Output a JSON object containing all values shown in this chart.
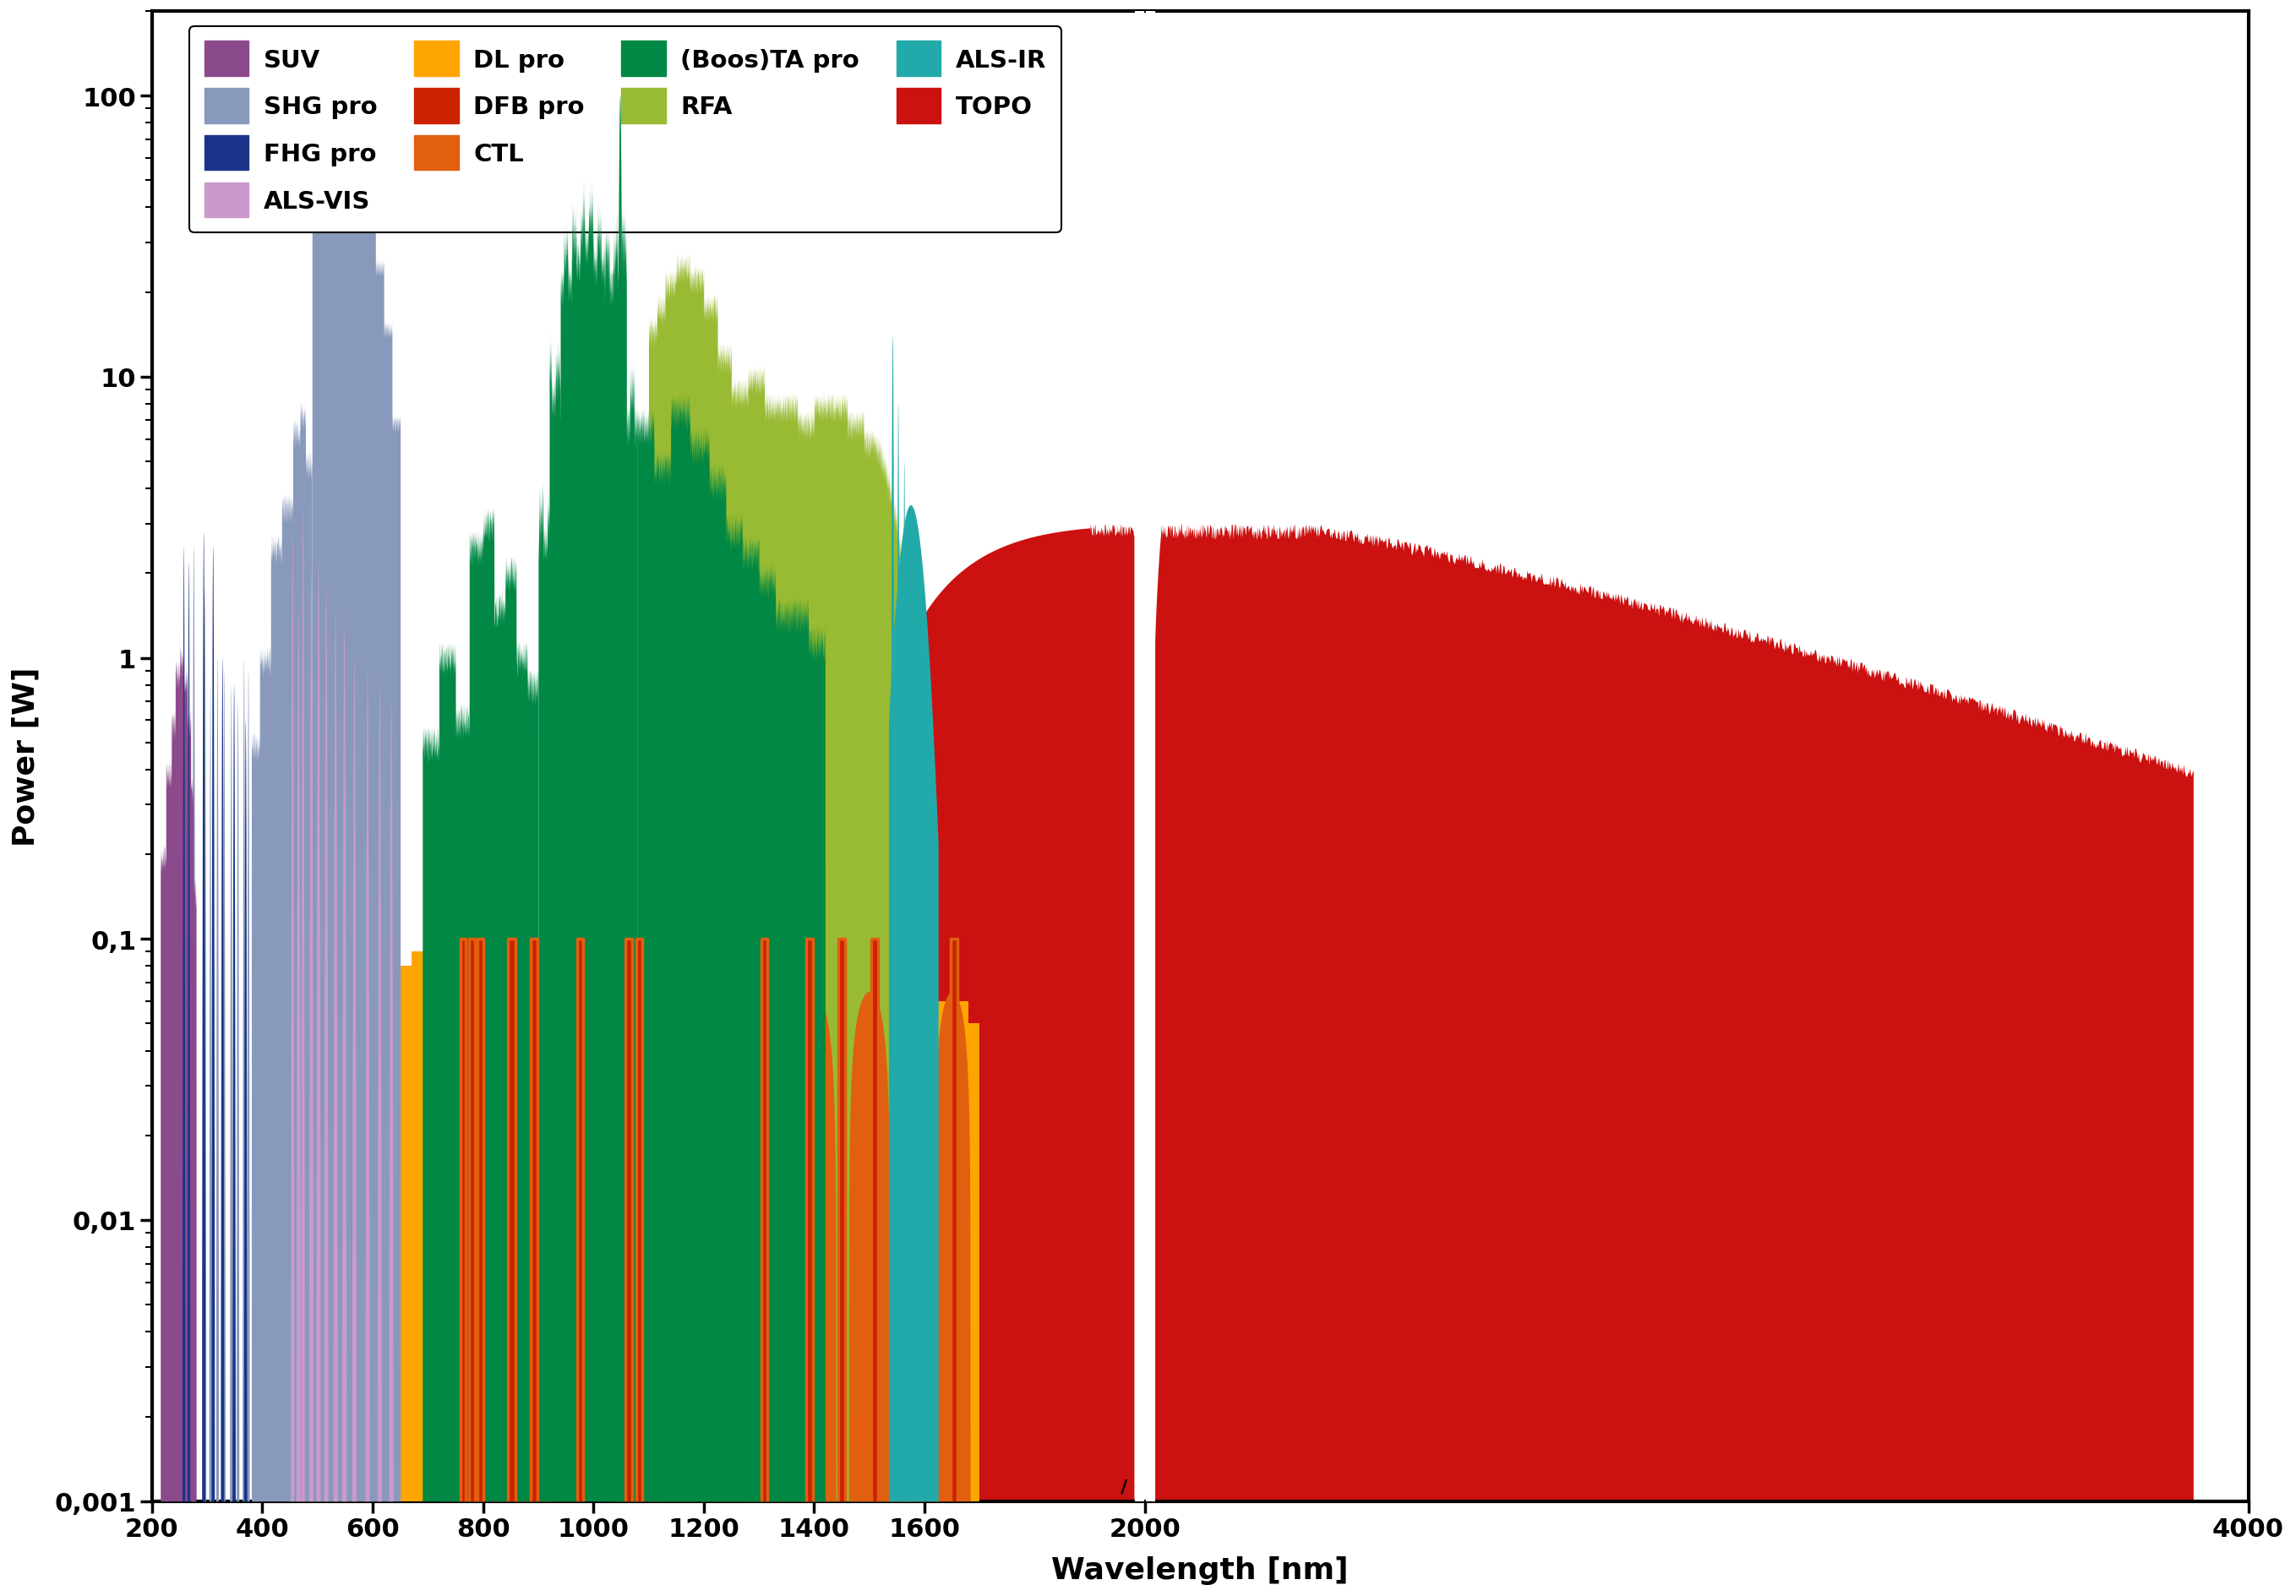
{
  "xlabel": "Wavelength [nm]",
  "ylabel": "Power [W]",
  "xlim": [
    200,
    4000
  ],
  "ylim_bottom": 0.001,
  "ylim_top": 200,
  "ytick_labels": [
    "0,001",
    "0,01",
    "0,1",
    "1",
    "10",
    "100"
  ],
  "ytick_values": [
    0.001,
    0.01,
    0.1,
    1,
    10,
    100
  ],
  "xtick_values": [
    200,
    400,
    600,
    800,
    1000,
    1200,
    1400,
    1600,
    2000,
    4000
  ],
  "colors": {
    "SUV": "#8B4A8B",
    "SHG_pro": "#8899BB",
    "FHG_pro": "#1B348A",
    "ALS_VIS": "#CC99CC",
    "DL_pro": "#FFA500",
    "DFB_pro": "#CC2200",
    "CTL": "#E06010",
    "BTA_pro": "#008844",
    "RFA": "#99BB33",
    "ALS_IR": "#22AAAA",
    "TOPO": "#CC1111"
  }
}
